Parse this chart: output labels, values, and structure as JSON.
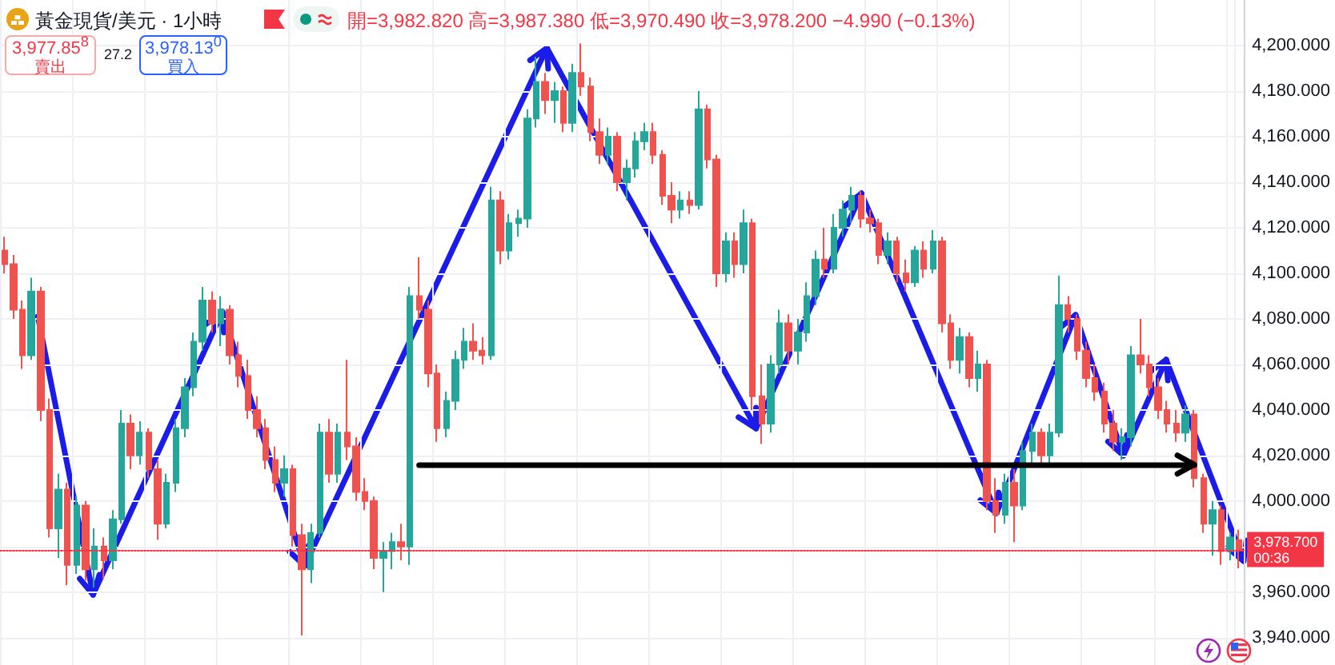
{
  "chart_data": {
    "type": "candlestick",
    "title": "黃金現貨/美元 · 1小時",
    "subtitle": "開=3,982.820 高=3,987.380 低=3,970.490 收=3,978.200 −4.990 (−0.13%)",
    "annotations": [
      "3,977.85$^{8}$",
      "賣出",
      "27.2",
      "3,978.13$^{0}$",
      "買入"
    ],
    "categories": [
      null,
      null,
      null,
      null,
      null,
      null,
      null,
      null,
      null,
      null,
      null,
      null,
      null,
      null,
      null,
      null,
      null,
      null,
      null,
      null,
      null,
      null,
      null,
      null,
      null,
      null,
      null,
      null,
      null,
      null,
      null,
      null,
      null,
      null,
      null,
      null,
      null,
      null,
      null,
      null,
      null,
      null,
      null,
      null,
      null,
      null,
      null,
      null,
      null,
      null,
      null,
      null,
      null,
      null,
      null,
      null,
      null,
      null,
      null,
      null,
      null,
      null,
      null,
      null,
      null,
      null,
      null,
      null,
      null,
      null,
      null,
      null,
      null,
      null,
      null,
      null,
      null,
      null,
      null,
      null,
      null,
      null,
      null,
      null,
      null,
      null,
      null,
      null,
      null,
      null,
      null,
      null,
      null,
      null,
      null,
      null,
      null,
      null,
      null,
      null,
      null,
      null,
      null,
      null,
      null,
      null,
      null,
      null,
      null,
      null,
      null,
      null,
      null,
      null,
      null,
      null,
      null,
      null,
      null,
      null,
      null,
      null,
      null,
      null,
      null,
      null,
      null,
      null,
      null,
      null,
      null,
      null,
      null,
      null,
      null,
      null,
      null,
      null
    ],
    "ohlc": [
      [
        4110,
        4116,
        4100,
        4104
      ],
      [
        4104,
        4108,
        4080,
        4084
      ],
      [
        4084,
        4088,
        4058,
        4064
      ],
      [
        4064,
        4098,
        4062,
        4092
      ],
      [
        4092,
        4094,
        4035,
        4040
      ],
      [
        4040,
        4045,
        3984,
        3988
      ],
      [
        3988,
        4012,
        3975,
        4005
      ],
      [
        4005,
        4008,
        3963,
        3972
      ],
      [
        3972,
        4002,
        3968,
        3998
      ],
      [
        3998,
        4000,
        3965,
        3970
      ],
      [
        3970,
        3988,
        3962,
        3980
      ],
      [
        3980,
        3984,
        3966,
        3974
      ],
      [
        3974,
        3996,
        3970,
        3992
      ],
      [
        3992,
        4040,
        3990,
        4034
      ],
      [
        4034,
        4038,
        4014,
        4020
      ],
      [
        4020,
        4035,
        4016,
        4030
      ],
      [
        4030,
        4032,
        4010,
        4014
      ],
      [
        4014,
        4018,
        3983,
        3990
      ],
      [
        3990,
        4012,
        3988,
        4008
      ],
      [
        4008,
        4036,
        4004,
        4032
      ],
      [
        4032,
        4054,
        4028,
        4050
      ],
      [
        4050,
        4074,
        4046,
        4070
      ],
      [
        4070,
        4094,
        4066,
        4088
      ],
      [
        4088,
        4092,
        4074,
        4078
      ],
      [
        4078,
        4090,
        4068,
        4084
      ],
      [
        4084,
        4086,
        4060,
        4064
      ],
      [
        4064,
        4070,
        4050,
        4055
      ],
      [
        4055,
        4062,
        4036,
        4040
      ],
      [
        4040,
        4046,
        4028,
        4032
      ],
      [
        4032,
        4036,
        4014,
        4018
      ],
      [
        4018,
        4024,
        4004,
        4008
      ],
      [
        4008,
        4020,
        4002,
        4014
      ],
      [
        4014,
        4016,
        3980,
        3985
      ],
      [
        3985,
        3990,
        3941,
        3970
      ],
      [
        3970,
        3990,
        3964,
        3986
      ],
      [
        3986,
        4034,
        3984,
        4030
      ],
      [
        4030,
        4036,
        4008,
        4012
      ],
      [
        4012,
        4034,
        4008,
        4030
      ],
      [
        4030,
        4062,
        4018,
        4024
      ],
      [
        4024,
        4028,
        4000,
        4004
      ],
      [
        4004,
        4010,
        3996,
        4000
      ],
      [
        4000,
        4002,
        3970,
        3975
      ],
      [
        3975,
        3982,
        3960,
        3978
      ],
      [
        3978,
        3986,
        3970,
        3982
      ],
      [
        3982,
        3990,
        3974,
        3980
      ],
      [
        3980,
        4094,
        3972,
        4090
      ],
      [
        4090,
        4107,
        4080,
        4084
      ],
      [
        4084,
        4088,
        4050,
        4056
      ],
      [
        4056,
        4060,
        4026,
        4032
      ],
      [
        4032,
        4048,
        4028,
        4044
      ],
      [
        4044,
        4066,
        4040,
        4062
      ],
      [
        4062,
        4076,
        4058,
        4070
      ],
      [
        4070,
        4078,
        4062,
        4066
      ],
      [
        4066,
        4072,
        4060,
        4064
      ],
      [
        4064,
        4138,
        4062,
        4132
      ],
      [
        4132,
        4136,
        4104,
        4110
      ],
      [
        4110,
        4126,
        4106,
        4122
      ],
      [
        4122,
        4128,
        4116,
        4124
      ],
      [
        4124,
        4172,
        4120,
        4168
      ],
      [
        4168,
        4195,
        4164,
        4184
      ],
      [
        4184,
        4188,
        4170,
        4176
      ],
      [
        4176,
        4184,
        4166,
        4180
      ],
      [
        4180,
        4182,
        4162,
        4166
      ],
      [
        4166,
        4192,
        4162,
        4188
      ],
      [
        4188,
        4201,
        4178,
        4182
      ],
      [
        4182,
        4186,
        4158,
        4162
      ],
      [
        4162,
        4168,
        4148,
        4152
      ],
      [
        4152,
        4164,
        4148,
        4160
      ],
      [
        4160,
        4162,
        4136,
        4140
      ],
      [
        4140,
        4150,
        4132,
        4146
      ],
      [
        4146,
        4162,
        4142,
        4158
      ],
      [
        4158,
        4166,
        4154,
        4162
      ],
      [
        4162,
        4166,
        4148,
        4152
      ],
      [
        4152,
        4154,
        4130,
        4134
      ],
      [
        4134,
        4140,
        4122,
        4128
      ],
      [
        4128,
        4136,
        4124,
        4132
      ],
      [
        4132,
        4136,
        4126,
        4130
      ],
      [
        4130,
        4180,
        4128,
        4172
      ],
      [
        4172,
        4174,
        4146,
        4150
      ],
      [
        4150,
        4152,
        4094,
        4100
      ],
      [
        4100,
        4118,
        4096,
        4114
      ],
      [
        4114,
        4118,
        4098,
        4104
      ],
      [
        4104,
        4128,
        4100,
        4122
      ],
      [
        4122,
        4124,
        4040,
        4046
      ],
      [
        4046,
        4060,
        4025,
        4034
      ],
      [
        4034,
        4064,
        4030,
        4060
      ],
      [
        4060,
        4084,
        4056,
        4078
      ],
      [
        4078,
        4082,
        4060,
        4066
      ],
      [
        4066,
        4080,
        4060,
        4074
      ],
      [
        4074,
        4096,
        4070,
        4090
      ],
      [
        4090,
        4110,
        4086,
        4106
      ],
      [
        4106,
        4120,
        4098,
        4102
      ],
      [
        4102,
        4126,
        4100,
        4120
      ],
      [
        4120,
        4132,
        4116,
        4128
      ],
      [
        4128,
        4138,
        4122,
        4134
      ],
      [
        4134,
        4136,
        4120,
        4124
      ],
      [
        4124,
        4128,
        4118,
        4122
      ],
      [
        4122,
        4124,
        4104,
        4108
      ],
      [
        4108,
        4118,
        4104,
        4114
      ],
      [
        4114,
        4116,
        4096,
        4100
      ],
      [
        4100,
        4106,
        4092,
        4096
      ],
      [
        4096,
        4112,
        4094,
        4110
      ],
      [
        4110,
        4114,
        4098,
        4102
      ],
      [
        4102,
        4119,
        4100,
        4114
      ],
      [
        4114,
        4116,
        4074,
        4078
      ],
      [
        4078,
        4082,
        4058,
        4062
      ],
      [
        4062,
        4076,
        4056,
        4072
      ],
      [
        4072,
        4074,
        4050,
        4054
      ],
      [
        4054,
        4066,
        4048,
        4060
      ],
      [
        4060,
        4062,
        3996,
        4000
      ],
      [
        4000,
        4010,
        3986,
        3994
      ],
      [
        3994,
        4012,
        3990,
        4008
      ],
      [
        4008,
        4014,
        3982,
        3998
      ],
      [
        3998,
        4026,
        3996,
        4022
      ],
      [
        4022,
        4034,
        4016,
        4030
      ],
      [
        4030,
        4032,
        4016,
        4020
      ],
      [
        4020,
        4034,
        4016,
        4030
      ],
      [
        4030,
        4099,
        4028,
        4086
      ],
      [
        4086,
        4090,
        4074,
        4080
      ],
      [
        4080,
        4082,
        4062,
        4066
      ],
      [
        4066,
        4070,
        4050,
        4054
      ],
      [
        4054,
        4060,
        4044,
        4048
      ],
      [
        4048,
        4052,
        4030,
        4034
      ],
      [
        4034,
        4040,
        4022,
        4026
      ],
      [
        4026,
        4032,
        4018,
        4028
      ],
      [
        4028,
        4068,
        4024,
        4064
      ],
      [
        4064,
        4080,
        4056,
        4060
      ],
      [
        4060,
        4064,
        4046,
        4050
      ],
      [
        4050,
        4054,
        4036,
        4040
      ],
      [
        4040,
        4044,
        4030,
        4034
      ],
      [
        4034,
        4040,
        4026,
        4030
      ],
      [
        4030,
        4042,
        4026,
        4038
      ],
      [
        4038,
        4040,
        4006,
        4010
      ],
      [
        4010,
        4012,
        3986,
        3990
      ],
      [
        3990,
        4000,
        3976,
        3996
      ],
      [
        3996,
        3998,
        3972,
        3978
      ],
      [
        3978,
        3986,
        3974,
        3984
      ],
      [
        3982.82,
        3987.38,
        3970.49,
        3978.2
      ]
    ],
    "colors": [
      "#ef5350",
      "#ef5350",
      "#ef5350",
      "#26a69a",
      "#ef5350",
      "#ef5350",
      "#26a69a",
      "#ef5350",
      "#26a69a",
      "#ef5350",
      "#26a69a",
      "#ef5350",
      "#26a69a",
      "#26a69a",
      "#ef5350",
      "#26a69a",
      "#ef5350",
      "#ef5350",
      "#26a69a",
      "#26a69a",
      "#26a69a",
      "#26a69a",
      "#26a69a",
      "#ef5350",
      "#26a69a",
      "#ef5350",
      "#ef5350",
      "#ef5350",
      "#ef5350",
      "#ef5350",
      "#ef5350",
      "#26a69a",
      "#ef5350",
      "#ef5350",
      "#26a69a",
      "#26a69a",
      "#ef5350",
      "#26a69a",
      "#ef5350",
      "#ef5350",
      "#ef5350",
      "#ef5350",
      "#26a69a",
      "#26a69a",
      "#ef5350",
      "#26a69a",
      "#ef5350",
      "#ef5350",
      "#ef5350",
      "#26a69a",
      "#26a69a",
      "#26a69a",
      "#ef5350",
      "#ef5350",
      "#26a69a",
      "#ef5350",
      "#26a69a",
      "#26a69a",
      "#26a69a",
      "#26a69a",
      "#ef5350",
      "#26a69a",
      "#ef5350",
      "#26a69a",
      "#ef5350",
      "#ef5350",
      "#ef5350",
      "#26a69a",
      "#ef5350",
      "#26a69a",
      "#26a69a",
      "#26a69a",
      "#ef5350",
      "#ef5350",
      "#ef5350",
      "#26a69a",
      "#ef5350",
      "#26a69a",
      "#ef5350",
      "#ef5350",
      "#26a69a",
      "#ef5350",
      "#26a69a",
      "#ef5350",
      "#ef5350",
      "#26a69a",
      "#26a69a",
      "#ef5350",
      "#26a69a",
      "#26a69a",
      "#26a69a",
      "#ef5350",
      "#26a69a",
      "#26a69a",
      "#26a69a",
      "#ef5350",
      "#ef5350",
      "#ef5350",
      "#26a69a",
      "#ef5350",
      "#ef5350",
      "#26a69a",
      "#ef5350",
      "#26a69a",
      "#ef5350",
      "#ef5350",
      "#26a69a",
      "#ef5350",
      "#26a69a",
      "#ef5350",
      "#ef5350",
      "#26a69a",
      "#ef5350",
      "#26a69a",
      "#26a69a",
      "#ef5350",
      "#26a69a",
      "#26a69a",
      "#ef5350",
      "#ef5350",
      "#ef5350",
      "#ef5350",
      "#ef5350",
      "#ef5350",
      "#26a69a",
      "#26a69a",
      "#ef5350",
      "#ef5350",
      "#ef5350",
      "#ef5350",
      "#ef5350",
      "#26a69a",
      "#ef5350",
      "#ef5350",
      "#26a69a",
      "#ef5350",
      "#26a69a",
      "#ef5350"
    ],
    "ylim": [
      3928,
      4220
    ],
    "yticks": [
      {
        "value": 3940,
        "label": "3,940.000"
      },
      {
        "value": 3960,
        "label": "3,960.000"
      },
      {
        "value": 3980,
        "label": null
      },
      {
        "value": 4000,
        "label": "4,000.000"
      },
      {
        "value": 4020,
        "label": "4,020.000"
      },
      {
        "value": 4040,
        "label": "4,040.000"
      },
      {
        "value": 4060,
        "label": "4,060.000"
      },
      {
        "value": 4080,
        "label": "4,080.000"
      },
      {
        "value": 4100,
        "label": "4,100.000"
      },
      {
        "value": 4120,
        "label": "4,120.000"
      },
      {
        "value": 4140,
        "label": "4,140.000"
      },
      {
        "value": 4160,
        "label": "4,160.000"
      },
      {
        "value": 4180,
        "label": "4,180.000"
      },
      {
        "value": 4200,
        "label": "4,200.000"
      }
    ],
    "grid": true,
    "tick_labels": "y",
    "ref_lines": [
      {
        "axis": "y",
        "value": 3978.7,
        "label": "3,978.700\n00:36",
        "color": "#f23645",
        "line_style": "dotted"
      },
      {
        "axis": "y",
        "value": 4016,
        "color": "#000000",
        "line_style": "solid"
      }
    ]
  }
}
